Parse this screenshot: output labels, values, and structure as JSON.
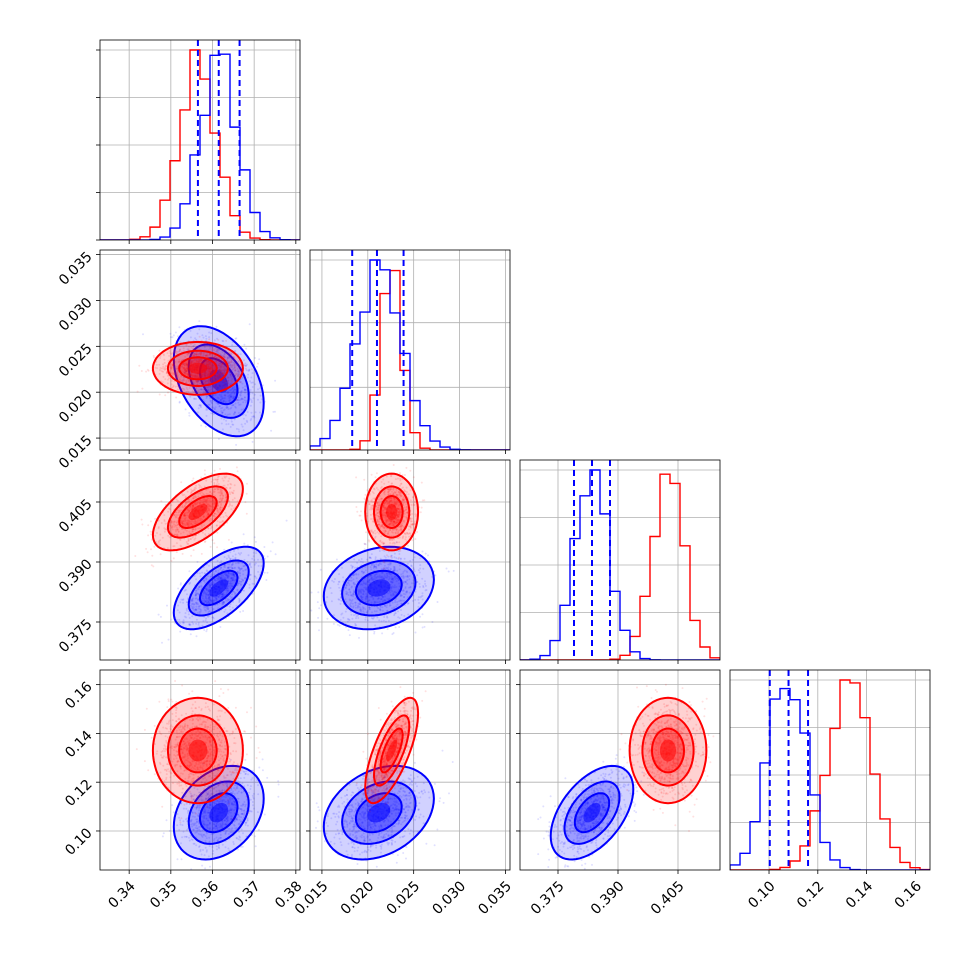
{
  "chart_data": {
    "type": "corner",
    "series": [
      {
        "color": "#0000ff",
        "means": [
          0.3615,
          0.0212,
          0.3835,
          0.1075
        ],
        "stds": [
          0.0045,
          0.0025,
          0.0043,
          0.008
        ],
        "quantiles": [
          [
            0.3565,
            0.3615,
            0.3665
          ],
          [
            0.0183,
            0.021,
            0.0239
          ],
          [
            0.379,
            0.3835,
            0.388
          ],
          [
            0.1003,
            0.108,
            0.116
          ]
        ],
        "corr": [
          [
            1.0,
            -0.4,
            0.6,
            0.3
          ],
          [
            -0.4,
            1.0,
            0.2,
            0.3
          ],
          [
            0.6,
            0.2,
            1.0,
            0.5
          ],
          [
            0.3,
            0.3,
            0.5,
            1.0
          ]
        ]
      },
      {
        "color": "#ff0000",
        "means": [
          0.3565,
          0.0226,
          0.4025,
          0.133
        ],
        "stds": [
          0.0045,
          0.0012,
          0.004,
          0.009
        ],
        "corr": [
          [
            1.0,
            0.0,
            0.6,
            0.0
          ],
          [
            0.0,
            1.0,
            0.0,
            0.7
          ],
          [
            0.6,
            0.0,
            1.0,
            0.0
          ],
          [
            0.0,
            0.7,
            0.0,
            1.0
          ]
        ]
      }
    ],
    "axes": [
      {
        "range": [
          0.333,
          0.381
        ],
        "ticks": [
          0.34,
          0.35,
          0.36,
          0.37,
          0.38
        ],
        "tick_labels": [
          "0.34",
          "0.35",
          "0.36",
          "0.37",
          "0.38"
        ]
      },
      {
        "range": [
          0.0137,
          0.0355
        ],
        "ticks": [
          0.015,
          0.02,
          0.025,
          0.03,
          0.035
        ],
        "tick_labels": [
          "0.015",
          "0.020",
          "0.025",
          "0.030",
          "0.035"
        ]
      },
      {
        "range": [
          0.3655,
          0.4155
        ],
        "ticks": [
          0.375,
          0.39,
          0.405
        ],
        "tick_labels": [
          "0.375",
          "0.390",
          "0.405"
        ]
      },
      {
        "range": [
          0.084,
          0.166
        ],
        "ticks": [
          0.1,
          0.12,
          0.14,
          0.16
        ],
        "tick_labels": [
          "0.10",
          "0.12",
          "0.14",
          "0.16"
        ]
      }
    ],
    "diagonal_y_ticks": [
      [
        0.25,
        0.5,
        0.75,
        1.0
      ],
      [
        0.33,
        0.67,
        1.0
      ],
      [
        0.25,
        0.5,
        0.75,
        1.0
      ],
      [
        0.25,
        0.5,
        0.75,
        1.0
      ]
    ],
    "grid": true
  }
}
